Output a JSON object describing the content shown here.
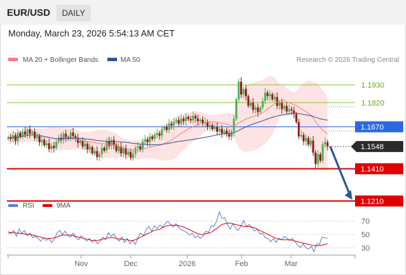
{
  "header": {
    "symbol": "EUR/USD",
    "timeframe": "DAILY",
    "datetime": "Monday, March 23, 2026 5:54:13 AM CET"
  },
  "legend": {
    "bollinger": {
      "label": "MA 20 + Bollinger Bands",
      "color": "#f08080"
    },
    "ma50": {
      "label": "MA 50",
      "color": "#2f5597"
    },
    "credit": "Research © 2026 Trading Central"
  },
  "rsi_legend": {
    "rsi": {
      "label": "RSI",
      "color": "#5b7fd4"
    },
    "ma9": {
      "label": "9MA",
      "color": "#e00000"
    }
  },
  "colors": {
    "up": "#4caf50",
    "down": "#8b1a1a",
    "support": "#e00000",
    "resistance": "#8cc63f",
    "pivot": "#2a6ae0",
    "arrow": "#2f5597"
  },
  "chart_data": [
    {
      "type": "candlestick",
      "title": "EUR/USD",
      "x_ticks": [
        "Nov",
        "Dec",
        "2026",
        "Feb",
        "Mar"
      ],
      "y_range": [
        1.125,
        1.203
      ],
      "current_price": {
        "value": 1.1548,
        "label": "1.1548"
      },
      "levels": [
        {
          "value": 1.193,
          "label": "1.1930",
          "kind": "resistance"
        },
        {
          "value": 1.182,
          "label": "1.1820",
          "kind": "resistance"
        },
        {
          "value": 1.167,
          "label": "1.1670",
          "kind": "pivot"
        },
        {
          "value": 1.141,
          "label": "1.1410",
          "kind": "support"
        },
        {
          "value": 1.121,
          "label": "1.1210",
          "kind": "support"
        }
      ],
      "forecast_arrow": {
        "from": 1.1548,
        "to": 1.121
      },
      "closes": [
        1.1605,
        1.1595,
        1.1618,
        1.1582,
        1.1632,
        1.161,
        1.164,
        1.1622,
        1.1655,
        1.1628,
        1.164,
        1.16,
        1.1612,
        1.1575,
        1.159,
        1.1556,
        1.1568,
        1.1532,
        1.1552,
        1.1538,
        1.1578,
        1.1602,
        1.1588,
        1.1628,
        1.1605,
        1.1596,
        1.1635,
        1.1612,
        1.1602,
        1.157,
        1.1585,
        1.1548,
        1.1565,
        1.153,
        1.1545,
        1.1505,
        1.152,
        1.1482,
        1.15,
        1.154,
        1.1522,
        1.158,
        1.1552,
        1.1588,
        1.156,
        1.152,
        1.1548,
        1.1505,
        1.1535,
        1.1498,
        1.1515,
        1.1478,
        1.1502,
        1.154,
        1.155,
        1.1528,
        1.1578,
        1.1592,
        1.1575,
        1.161,
        1.1595,
        1.162,
        1.163,
        1.1615,
        1.1655,
        1.1668,
        1.165,
        1.169,
        1.1678,
        1.17,
        1.1712,
        1.169,
        1.172,
        1.1705,
        1.1732,
        1.1718,
        1.171,
        1.1738,
        1.1722,
        1.1705,
        1.1715,
        1.169,
        1.17,
        1.1672,
        1.168,
        1.1655,
        1.1668,
        1.164,
        1.1658,
        1.163,
        1.1645,
        1.1625,
        1.161,
        1.164,
        1.172,
        1.184,
        1.195,
        1.187,
        1.1905,
        1.186,
        1.18,
        1.182,
        1.1775,
        1.179,
        1.176,
        1.179,
        1.183,
        1.1882,
        1.186,
        1.1872,
        1.184,
        1.1855,
        1.18,
        1.182,
        1.178,
        1.18,
        1.1765,
        1.178,
        1.1772,
        1.175,
        1.17,
        1.161,
        1.162,
        1.158,
        1.16,
        1.156,
        1.1585,
        1.151,
        1.144,
        1.15,
        1.146,
        1.156,
        1.1575,
        1.1548
      ],
      "series": [
        {
          "name": "MA 20 + Bollinger Bands"
        },
        {
          "name": "MA 50"
        }
      ]
    },
    {
      "type": "line",
      "title": "RSI",
      "y_ticks": [
        70,
        50,
        30
      ],
      "y_range": [
        20,
        80
      ],
      "series": [
        {
          "name": "RSI",
          "values": [
            55,
            51,
            56,
            47,
            58,
            52,
            56,
            48,
            52,
            45,
            47,
            44,
            40,
            45,
            41,
            44,
            38,
            43,
            52,
            56,
            50,
            55,
            48,
            46,
            52,
            45,
            42,
            48,
            44,
            40,
            44,
            38,
            42,
            36,
            40,
            46,
            42,
            53,
            47,
            51,
            44,
            40,
            46,
            38,
            44,
            36,
            41,
            35,
            46,
            52,
            48,
            58,
            62,
            55,
            63,
            59,
            64,
            61,
            66,
            70,
            65,
            61,
            66,
            60,
            57,
            55,
            53,
            49,
            52,
            45,
            48,
            44,
            48,
            55,
            53,
            63,
            62,
            70,
            84,
            74,
            75,
            65,
            58,
            66,
            60,
            56,
            63,
            71,
            62,
            65,
            61,
            55,
            58,
            51,
            52,
            45,
            44,
            39,
            44,
            38,
            44,
            42,
            47,
            44,
            41,
            44,
            39,
            34,
            30,
            36,
            30,
            28,
            32,
            24,
            36,
            35,
            46,
            45,
            44
          ]
        },
        {
          "name": "9MA",
          "values": [
            52,
            53,
            53,
            52,
            52,
            51,
            51,
            50,
            50,
            49,
            48,
            47,
            46,
            45,
            44,
            44,
            44,
            45,
            46,
            48,
            49,
            49,
            49,
            49,
            48,
            47,
            46,
            45,
            44,
            43,
            42,
            41,
            41,
            41,
            42,
            43,
            44,
            45,
            45,
            45,
            44,
            43,
            43,
            42,
            42,
            41,
            41,
            42,
            44,
            46,
            48,
            50,
            52,
            54,
            56,
            57,
            58,
            60,
            62,
            63,
            64,
            64,
            64,
            63,
            62,
            61,
            59,
            57,
            55,
            53,
            51,
            50,
            50,
            51,
            52,
            53,
            56,
            59,
            62,
            65,
            66,
            67,
            67,
            66,
            65,
            64,
            63,
            62,
            62,
            62,
            61,
            60,
            58,
            56,
            54,
            52,
            50,
            48,
            46,
            44,
            43,
            42,
            42,
            42,
            42,
            41,
            40,
            39,
            38,
            37,
            36,
            35,
            34,
            33,
            33,
            33,
            34,
            35,
            36
          ]
        }
      ]
    }
  ]
}
